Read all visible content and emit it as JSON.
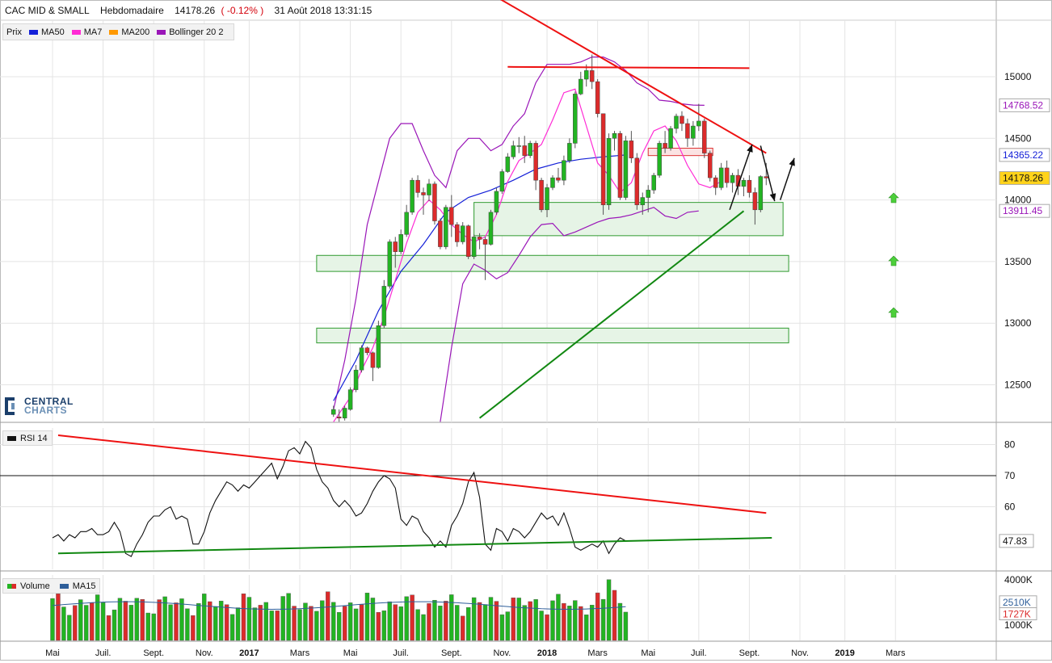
{
  "header": {
    "instrument": "CAC MID & SMALL",
    "period": "Hebdomadaire",
    "last": "14178.26",
    "change": "( -0.12% )",
    "datetime": "31 Août 2018 13:31:15"
  },
  "legend": {
    "items": [
      {
        "label": "Prix",
        "color": ""
      },
      {
        "label": "MA50",
        "color": "#1420d8"
      },
      {
        "label": "MA7",
        "color": "#ff2bd5"
      },
      {
        "label": "MA200",
        "color": "#ff9900"
      },
      {
        "label": "Bollinger 20 2",
        "color": "#9a16b8"
      }
    ]
  },
  "logo": {
    "line1": "CENTRAL",
    "line2": "CHARTS"
  },
  "rsi_panel": {
    "label": "RSI 14"
  },
  "volume_panel": {
    "label1": "Volume",
    "label2": "MA15"
  },
  "colors": {
    "up": "#22b422",
    "down": "#dc2b2b",
    "ma50": "#1420d8",
    "ma7": "#ff2bd5",
    "bollinger": "#9a16b8",
    "trend_red": "#ee1111",
    "trend_green": "#118811",
    "zone_fill": "#e6f4e6",
    "zone_border": "#2f9a2f",
    "last_bg": "#ffd31a"
  },
  "chart_data": [
    {
      "type": "candlestick",
      "title": "CAC MID & SMALL",
      "period": "Hebdomadaire",
      "ylim": [
        12200,
        15300
      ],
      "y_ticks": [
        12500,
        13000,
        13500,
        14000,
        14500,
        15000
      ],
      "x_ticks": [
        "Mai",
        "Juil.",
        "Sept.",
        "Nov.",
        "2017",
        "Mars",
        "Mai",
        "Juil.",
        "Sept.",
        "Nov.",
        "2018",
        "Mars",
        "Mai",
        "Juil.",
        "Sept.",
        "Nov.",
        "2019",
        "Mars"
      ],
      "x_tick_weeks": [
        0,
        9,
        18,
        27,
        35,
        44,
        53,
        62,
        71,
        80,
        88,
        97,
        106,
        115,
        124,
        133,
        141,
        150
      ],
      "first_candle_week": 50,
      "candles": [
        {
          "o": 12260,
          "h": 12330,
          "l": 12240,
          "c": 12300
        },
        {
          "o": 12240,
          "h": 12300,
          "l": 12200,
          "c": 12230
        },
        {
          "o": 12230,
          "h": 12330,
          "l": 12210,
          "c": 12310
        },
        {
          "o": 12300,
          "h": 12480,
          "l": 12290,
          "c": 12460
        },
        {
          "o": 12460,
          "h": 12660,
          "l": 12440,
          "c": 12620
        },
        {
          "o": 12620,
          "h": 12820,
          "l": 12600,
          "c": 12800
        },
        {
          "o": 12800,
          "h": 12810,
          "l": 12740,
          "c": 12760
        },
        {
          "o": 12760,
          "h": 12770,
          "l": 12530,
          "c": 12640
        },
        {
          "o": 12640,
          "h": 13020,
          "l": 12630,
          "c": 12980
        },
        {
          "o": 12980,
          "h": 13350,
          "l": 12960,
          "c": 13300
        },
        {
          "o": 13300,
          "h": 13680,
          "l": 13280,
          "c": 13660
        },
        {
          "o": 13660,
          "h": 13700,
          "l": 13450,
          "c": 13580
        },
        {
          "o": 13580,
          "h": 13760,
          "l": 13560,
          "c": 13720
        },
        {
          "o": 13720,
          "h": 13960,
          "l": 13700,
          "c": 13900
        },
        {
          "o": 13900,
          "h": 14180,
          "l": 13880,
          "c": 14160
        },
        {
          "o": 14160,
          "h": 14200,
          "l": 14020,
          "c": 14060
        },
        {
          "o": 14060,
          "h": 14100,
          "l": 13880,
          "c": 14040
        },
        {
          "o": 14040,
          "h": 14170,
          "l": 13990,
          "c": 14130
        },
        {
          "o": 14130,
          "h": 14150,
          "l": 13800,
          "c": 13830
        },
        {
          "o": 13830,
          "h": 13850,
          "l": 13600,
          "c": 13620
        },
        {
          "o": 13620,
          "h": 13960,
          "l": 13600,
          "c": 13940
        },
        {
          "o": 13940,
          "h": 14040,
          "l": 13700,
          "c": 13800
        },
        {
          "o": 13800,
          "h": 13820,
          "l": 13620,
          "c": 13660
        },
        {
          "o": 13660,
          "h": 13820,
          "l": 13640,
          "c": 13790
        },
        {
          "o": 13790,
          "h": 13800,
          "l": 13520,
          "c": 13540
        },
        {
          "o": 13540,
          "h": 13720,
          "l": 13520,
          "c": 13700
        },
        {
          "o": 13700,
          "h": 13730,
          "l": 13600,
          "c": 13680
        },
        {
          "o": 13680,
          "h": 13700,
          "l": 13350,
          "c": 13640
        },
        {
          "o": 13640,
          "h": 13920,
          "l": 13630,
          "c": 13900
        },
        {
          "o": 13900,
          "h": 14100,
          "l": 13880,
          "c": 14070
        },
        {
          "o": 14070,
          "h": 14250,
          "l": 14050,
          "c": 14230
        },
        {
          "o": 14230,
          "h": 14380,
          "l": 14220,
          "c": 14350
        },
        {
          "o": 14350,
          "h": 14480,
          "l": 14330,
          "c": 14440
        },
        {
          "o": 14440,
          "h": 14510,
          "l": 14380,
          "c": 14440
        },
        {
          "o": 14440,
          "h": 14520,
          "l": 14300,
          "c": 14360
        },
        {
          "o": 14360,
          "h": 14480,
          "l": 14340,
          "c": 14460
        },
        {
          "o": 14460,
          "h": 14480,
          "l": 14080,
          "c": 14160
        },
        {
          "o": 14160,
          "h": 14180,
          "l": 13900,
          "c": 13920
        },
        {
          "o": 13920,
          "h": 14130,
          "l": 13860,
          "c": 14100
        },
        {
          "o": 14100,
          "h": 14200,
          "l": 14080,
          "c": 14180
        },
        {
          "o": 14180,
          "h": 14260,
          "l": 14140,
          "c": 14160
        },
        {
          "o": 14160,
          "h": 14360,
          "l": 14120,
          "c": 14320
        },
        {
          "o": 14320,
          "h": 14500,
          "l": 14300,
          "c": 14460
        },
        {
          "o": 14460,
          "h": 14880,
          "l": 14420,
          "c": 14860
        },
        {
          "o": 14860,
          "h": 15040,
          "l": 14850,
          "c": 14980
        },
        {
          "o": 14980,
          "h": 15100,
          "l": 14920,
          "c": 15050
        },
        {
          "o": 15050,
          "h": 15180,
          "l": 14900,
          "c": 14960
        },
        {
          "o": 14960,
          "h": 14980,
          "l": 14670,
          "c": 14700
        },
        {
          "o": 14700,
          "h": 14680,
          "l": 13880,
          "c": 13960
        },
        {
          "o": 13960,
          "h": 14540,
          "l": 13920,
          "c": 14500
        },
        {
          "o": 14500,
          "h": 14560,
          "l": 14400,
          "c": 14540
        },
        {
          "o": 14540,
          "h": 14560,
          "l": 14000,
          "c": 14020
        },
        {
          "o": 14020,
          "h": 14520,
          "l": 14000,
          "c": 14480
        },
        {
          "o": 14480,
          "h": 14560,
          "l": 14300,
          "c": 14340
        },
        {
          "o": 14340,
          "h": 14380,
          "l": 13920,
          "c": 13960
        },
        {
          "o": 13960,
          "h": 14060,
          "l": 13880,
          "c": 14020
        },
        {
          "o": 14020,
          "h": 14120,
          "l": 13900,
          "c": 14080
        },
        {
          "o": 14080,
          "h": 14220,
          "l": 14050,
          "c": 14200
        },
        {
          "o": 14200,
          "h": 14480,
          "l": 14180,
          "c": 14460
        },
        {
          "o": 14460,
          "h": 14560,
          "l": 14380,
          "c": 14420
        },
        {
          "o": 14420,
          "h": 14600,
          "l": 14400,
          "c": 14580
        },
        {
          "o": 14580,
          "h": 14700,
          "l": 14540,
          "c": 14680
        },
        {
          "o": 14680,
          "h": 14720,
          "l": 14560,
          "c": 14620
        },
        {
          "o": 14620,
          "h": 14660,
          "l": 14430,
          "c": 14500
        },
        {
          "o": 14500,
          "h": 14640,
          "l": 14440,
          "c": 14600
        },
        {
          "o": 14600,
          "h": 14780,
          "l": 14560,
          "c": 14640
        },
        {
          "o": 14640,
          "h": 14660,
          "l": 14340,
          "c": 14380
        },
        {
          "o": 14380,
          "h": 14400,
          "l": 14150,
          "c": 14180
        },
        {
          "o": 14180,
          "h": 14200,
          "l": 14040,
          "c": 14100
        },
        {
          "o": 14100,
          "h": 14300,
          "l": 14080,
          "c": 14260
        },
        {
          "o": 14260,
          "h": 14320,
          "l": 14100,
          "c": 14140
        },
        {
          "o": 14140,
          "h": 14220,
          "l": 14060,
          "c": 14200
        },
        {
          "o": 14200,
          "h": 14250,
          "l": 14040,
          "c": 14110
        },
        {
          "o": 14110,
          "h": 14180,
          "l": 14030,
          "c": 14160
        },
        {
          "o": 14160,
          "h": 14200,
          "l": 14020,
          "c": 14060
        },
        {
          "o": 14060,
          "h": 14100,
          "l": 13800,
          "c": 13920
        },
        {
          "o": 13920,
          "h": 14200,
          "l": 13900,
          "c": 14190
        },
        {
          "o": 14190,
          "h": 14300,
          "l": 14120,
          "c": 14178
        }
      ],
      "ma50": [
        [
          50,
          12370
        ],
        [
          54,
          12700
        ],
        [
          58,
          13100
        ],
        [
          62,
          13420
        ],
        [
          66,
          13640
        ],
        [
          70,
          13900
        ],
        [
          74,
          14020
        ],
        [
          78,
          14080
        ],
        [
          82,
          14160
        ],
        [
          86,
          14250
        ],
        [
          90,
          14300
        ],
        [
          94,
          14330
        ],
        [
          98,
          14350
        ],
        [
          102,
          14365
        ]
      ],
      "ma7": [
        [
          50,
          12200
        ],
        [
          53,
          12400
        ],
        [
          55,
          12620
        ],
        [
          57,
          12800
        ],
        [
          59,
          13050
        ],
        [
          61,
          13350
        ],
        [
          63,
          13650
        ],
        [
          65,
          13900
        ],
        [
          67,
          14000
        ],
        [
          69,
          13920
        ],
        [
          71,
          13800
        ],
        [
          73,
          13720
        ],
        [
          75,
          13660
        ],
        [
          77,
          13700
        ],
        [
          79,
          13880
        ],
        [
          81,
          14150
        ],
        [
          83,
          14320
        ],
        [
          85,
          14380
        ],
        [
          87,
          14450
        ],
        [
          89,
          14650
        ],
        [
          91,
          14870
        ],
        [
          93,
          14900
        ],
        [
          95,
          14600
        ],
        [
          97,
          14300
        ],
        [
          99,
          14200
        ],
        [
          101,
          14060
        ],
        [
          103,
          14140
        ],
        [
          105,
          14380
        ],
        [
          107,
          14560
        ],
        [
          109,
          14600
        ],
        [
          111,
          14480
        ],
        [
          113,
          14280
        ],
        [
          115,
          14130
        ],
        [
          117,
          14100
        ],
        [
          119,
          14150
        ]
      ],
      "bollinger_upper": [
        [
          50,
          12300
        ],
        [
          52,
          12700
        ],
        [
          54,
          13200
        ],
        [
          56,
          13800
        ],
        [
          58,
          14150
        ],
        [
          60,
          14500
        ],
        [
          62,
          14620
        ],
        [
          64,
          14620
        ],
        [
          66,
          14400
        ],
        [
          68,
          14200
        ],
        [
          70,
          14100
        ],
        [
          72,
          14400
        ],
        [
          74,
          14500
        ],
        [
          76,
          14500
        ],
        [
          78,
          14400
        ],
        [
          80,
          14450
        ],
        [
          82,
          14600
        ],
        [
          84,
          14700
        ],
        [
          86,
          14950
        ],
        [
          88,
          15100
        ],
        [
          90,
          15100
        ],
        [
          92,
          15100
        ],
        [
          94,
          15120
        ],
        [
          96,
          15160
        ],
        [
          98,
          15160
        ],
        [
          100,
          15120
        ],
        [
          102,
          15050
        ],
        [
          104,
          14950
        ],
        [
          106,
          14900
        ],
        [
          108,
          14810
        ],
        [
          110,
          14800
        ],
        [
          112,
          14780
        ],
        [
          114,
          14770
        ],
        [
          116,
          14768
        ]
      ],
      "bollinger_lower": [
        [
          69,
          12200
        ],
        [
          71,
          12800
        ],
        [
          73,
          13320
        ],
        [
          75,
          13480
        ],
        [
          77,
          13430
        ],
        [
          79,
          13360
        ],
        [
          81,
          13410
        ],
        [
          83,
          13550
        ],
        [
          85,
          13700
        ],
        [
          87,
          13800
        ],
        [
          89,
          13810
        ],
        [
          91,
          13710
        ],
        [
          93,
          13740
        ],
        [
          95,
          13780
        ],
        [
          97,
          13820
        ],
        [
          99,
          13850
        ],
        [
          101,
          13860
        ],
        [
          103,
          13880
        ],
        [
          105,
          13910
        ],
        [
          107,
          13940
        ],
        [
          109,
          13870
        ],
        [
          111,
          13850
        ],
        [
          113,
          13900
        ],
        [
          115,
          13911
        ]
      ],
      "zones": [
        {
          "w0": 75,
          "w1": 130,
          "y0": 13710,
          "y1": 13980
        },
        {
          "w0": 47,
          "w1": 131,
          "y0": 13420,
          "y1": 13550
        },
        {
          "w0": 47,
          "w1": 131,
          "y0": 12840,
          "y1": 12960
        }
      ],
      "resistance_box": {
        "w0": 106,
        "w1": 117.5,
        "y0": 14360,
        "y1": 14420
      },
      "trendlines": [
        {
          "color": "red",
          "pts": [
            [
              77,
              15700
            ],
            [
              127,
              14380
            ]
          ]
        },
        {
          "color": "red",
          "pts": [
            [
              81,
              15080
            ],
            [
              124,
              15070
            ]
          ]
        },
        {
          "color": "green",
          "pts": [
            [
              76,
              12230
            ],
            [
              123,
              13910
            ]
          ]
        }
      ],
      "value_labels": [
        {
          "value": "14768.52",
          "y": 14768,
          "color": "#9a16b8",
          "bg": "#ffffff"
        },
        {
          "value": "14365.22",
          "y": 14365,
          "color": "#1420d8",
          "bg": "#ffffff"
        },
        {
          "value": "14178.26",
          "y": 14178,
          "color": "#111111",
          "bg": "#ffd31a"
        },
        {
          "value": "13911.45",
          "y": 13911,
          "color": "#9a16b8",
          "bg": "#ffffff"
        }
      ]
    },
    {
      "type": "line",
      "title": "RSI 14",
      "ylim": [
        45,
        83
      ],
      "y_ticks": [
        60,
        70,
        80
      ],
      "level_line": 70,
      "values": [
        50,
        51,
        49,
        51,
        50,
        52,
        52,
        53,
        51,
        51,
        52,
        55,
        52,
        45,
        44,
        48,
        51,
        55,
        57,
        57,
        59,
        60,
        56,
        57,
        56,
        48,
        48,
        52,
        58,
        62,
        65,
        68,
        67,
        65,
        67,
        66,
        68,
        70,
        72,
        74,
        69,
        73,
        78,
        79,
        77,
        81,
        79,
        72,
        68,
        66,
        62,
        60,
        62,
        60,
        57,
        58,
        61,
        65,
        68,
        70,
        69,
        66,
        56,
        54,
        57,
        56,
        52,
        50,
        47,
        49,
        47,
        54,
        57,
        61,
        68,
        71,
        63,
        48,
        46,
        53,
        52,
        49,
        53,
        52,
        50,
        52,
        55,
        58,
        56,
        57,
        54,
        58,
        53,
        47,
        46,
        47,
        48,
        47,
        49,
        45,
        48,
        50,
        49
      ],
      "trendlines": [
        {
          "color": "red",
          "pts": [
            [
              1,
              83
            ],
            [
              127,
              58
            ]
          ]
        },
        {
          "color": "green",
          "pts": [
            [
              1,
              45
            ],
            [
              128,
              50
            ]
          ]
        }
      ],
      "last_label": "47.83"
    },
    {
      "type": "bar",
      "title": "Volume",
      "ylim": [
        0,
        4300
      ],
      "y_tick_labels": [
        "4000K",
        "1000K"
      ],
      "y_tick_values": [
        4000,
        1000
      ],
      "ma15_label": "2510K",
      "last_label": "1727K",
      "ma15_value": 2510,
      "last_value": 1727
    }
  ]
}
